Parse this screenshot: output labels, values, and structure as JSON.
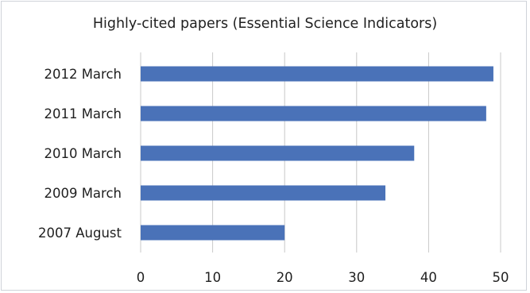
{
  "chart_data": {
    "type": "bar",
    "orientation": "horizontal",
    "title": "Highly-cited papers (Essential Science Indicators)",
    "xlabel": "",
    "ylabel": "",
    "categories": [
      "2012 March",
      "2011 March",
      "2010 March",
      "2009 March",
      "2007 August"
    ],
    "values": [
      49,
      48,
      38,
      34,
      20
    ],
    "xlim": [
      0,
      50
    ],
    "ticks": [
      "0",
      "10",
      "20",
      "30",
      "40",
      "50"
    ],
    "grid": "vertical",
    "legend": "none",
    "bar_color": "#4a72b8",
    "grid_color": "#c8c8c8"
  }
}
